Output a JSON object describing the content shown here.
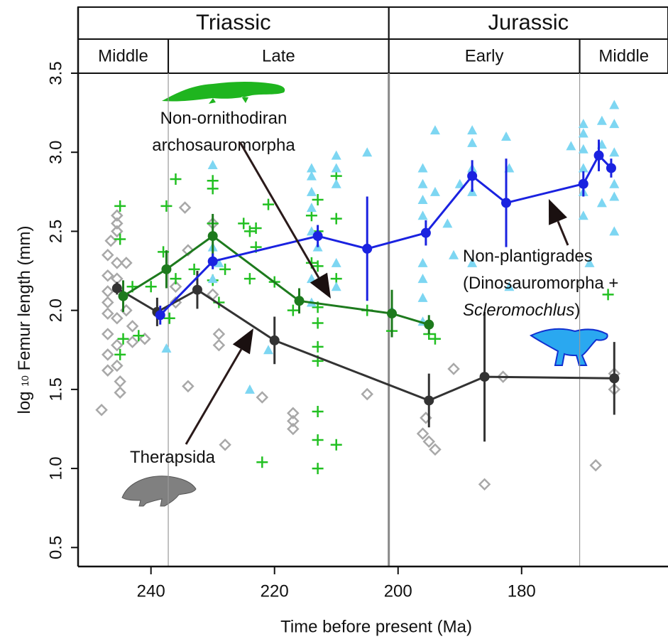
{
  "chart_data": {
    "type": "line",
    "xlabel": "Time before present (Ma)",
    "ylabel": {
      "prefix": "log",
      "subscript": "10",
      "text": "Femur length (mm)"
    },
    "xlim": [
      251.8,
      156.3
    ],
    "xticks": [
      240,
      220,
      200,
      180
    ],
    "ylim": [
      0.38,
      3.5
    ],
    "yticks": [
      0.5,
      {
        "value": 1,
        "label": "1.0"
      },
      1.5,
      {
        "value": 2,
        "label": "2.0"
      },
      2.5,
      {
        "value": 3,
        "label": "3.0"
      },
      3.5
    ],
    "periods": [
      {
        "label": "Triassic",
        "from": 251.8,
        "to": 201.5
      },
      {
        "label": "Jurassic",
        "from": 201.5,
        "to": 156.3
      }
    ],
    "epochs": [
      {
        "label": "Middle",
        "from": 251.8,
        "to": 237.2
      },
      {
        "label": "Late",
        "from": 237.2,
        "to": 201.5
      },
      {
        "label": "Early",
        "from": 201.5,
        "to": 170.6
      },
      {
        "label": "Middle",
        "from": 170.6,
        "to": 156.3
      }
    ],
    "series": [
      {
        "label_lines": [
          [
            {
              "text": "Therapsida"
            }
          ]
        ],
        "color": "#333333",
        "point_color": "#a8a8a8",
        "marker": "diamond",
        "x": [
          245.5,
          239,
          232.5,
          220,
          195,
          186,
          165
        ],
        "values": [
          2.14,
          1.99,
          2.13,
          1.81,
          1.43,
          1.58,
          1.57
        ],
        "errors": [
          0.04,
          0.09,
          0.12,
          0.15,
          0.17,
          0.41,
          0.23
        ],
        "points": {
          "x": [
            248,
            247,
            247,
            247,
            247,
            247,
            247,
            247,
            247,
            246.5,
            245.5,
            245.5,
            245.5,
            245.5,
            245.5,
            245.5,
            245.5,
            245.5,
            245,
            245,
            244,
            244,
            243,
            243,
            241,
            236,
            236,
            234,
            234.5,
            234,
            230,
            230,
            229,
            229,
            228,
            222,
            217,
            217,
            217,
            205,
            195.5,
            196,
            195,
            194,
            191,
            186,
            183,
            168,
            165,
            165
          ],
          "values": [
            1.37,
            1.62,
            1.72,
            1.85,
            1.98,
            2.05,
            2.12,
            2.22,
            2.35,
            2.44,
            2.5,
            2.55,
            2.6,
            2.3,
            2.2,
            1.95,
            1.78,
            1.65,
            1.55,
            1.48,
            2.3,
            2.0,
            1.9,
            1.8,
            1.82,
            2.05,
            2.15,
            2.38,
            2.65,
            1.52,
            2.55,
            2.1,
            1.85,
            1.78,
            1.15,
            1.45,
            1.35,
            1.3,
            1.25,
            1.47,
            1.32,
            1.22,
            1.17,
            1.12,
            1.63,
            0.9,
            1.58,
            1.02,
            1.6,
            1.5
          ]
        }
      },
      {
        "label_lines": [
          [
            {
              "text": "Non-ornithodiran"
            }
          ],
          [
            {
              "text": "archosauromorpha"
            }
          ]
        ],
        "color": "#1d7a1d",
        "point_color": "#22c022",
        "marker": "plus",
        "x": [
          244.5,
          237.5,
          230,
          216,
          201,
          195
        ],
        "values": [
          2.09,
          2.26,
          2.47,
          2.06,
          1.98,
          1.91
        ],
        "errors": [
          0.1,
          0.12,
          0.14,
          0.08,
          0.15,
          0.06
        ],
        "points": {
          "x": [
            245,
            245,
            245,
            244.5,
            243,
            242,
            240,
            237.5,
            238,
            237,
            236,
            233,
            230,
            230,
            230,
            230,
            229,
            228,
            225,
            224,
            224,
            223,
            223,
            222,
            221,
            220,
            217,
            214,
            214,
            213,
            213,
            213,
            213,
            213,
            213,
            213,
            213,
            213,
            213,
            210,
            210,
            210,
            210,
            205,
            201,
            195,
            194,
            166,
            236
          ],
          "values": [
            2.66,
            2.45,
            1.72,
            1.82,
            2.15,
            1.84,
            2.15,
            2.66,
            2.37,
            1.95,
            2.2,
            2.26,
            2.82,
            2.77,
            2.55,
            2.19,
            2.05,
            2.26,
            2.55,
            2.5,
            2.2,
            2.52,
            2.4,
            1.04,
            2.67,
            2.18,
            2.0,
            2.6,
            2.3,
            2.7,
            2.5,
            2.28,
            2.02,
            1.92,
            1.77,
            1.68,
            1.36,
            1.18,
            1.0,
            2.85,
            2.58,
            2.2,
            1.15,
            2.0,
            1.87,
            1.85,
            1.82,
            2.1,
            2.83
          ]
        }
      },
      {
        "label_lines": [
          [
            {
              "text": "Non-plantigrades"
            }
          ],
          [
            {
              "text": "(Dinosauromorpha +"
            }
          ],
          [
            {
              "text": "Scleromochlus",
              "italic": true
            },
            {
              "text": ")"
            }
          ]
        ],
        "color": "#1a22e0",
        "point_color": "#7dd6f2",
        "marker": "triangle",
        "x": [
          238.5,
          230,
          213,
          205,
          195.5,
          188,
          182.5,
          170,
          167.5,
          165.5
        ],
        "values": [
          1.97,
          2.31,
          2.47,
          2.39,
          2.49,
          2.85,
          2.68,
          2.8,
          2.98,
          2.9
        ],
        "errors": [
          0.06,
          0.05,
          0.07,
          0.33,
          0.08,
          0.1,
          0.28,
          0.08,
          0.1,
          0.06
        ],
        "points": {
          "x": [
            237.5,
            230,
            230,
            229,
            230,
            221,
            224,
            214,
            214,
            214,
            214,
            214,
            214,
            214,
            213,
            210,
            210,
            210,
            210,
            210,
            205,
            201,
            196,
            196,
            196,
            196,
            196,
            196,
            196,
            196,
            194,
            194,
            192,
            191,
            190,
            188,
            188,
            188,
            188,
            188,
            182.5,
            182,
            182,
            170,
            170,
            170,
            170,
            170,
            170,
            169,
            167,
            167,
            167,
            165,
            165,
            165,
            165,
            165,
            165,
            172
          ],
          "values": [
            1.76,
            2.92,
            2.4,
            2.3,
            2.2,
            1.75,
            1.5,
            2.9,
            2.85,
            2.75,
            2.65,
            2.5,
            2.2,
            2.05,
            2.4,
            2.98,
            2.9,
            2.8,
            2.3,
            2.15,
            3.0,
            2.0,
            2.9,
            2.8,
            2.7,
            2.6,
            2.3,
            2.2,
            2.08,
            1.93,
            3.14,
            2.75,
            2.55,
            2.35,
            2.8,
            3.14,
            3.06,
            2.9,
            2.75,
            2.3,
            3.1,
            2.9,
            2.15,
            3.18,
            3.12,
            3.02,
            2.9,
            2.75,
            2.6,
            2.3,
            3.2,
            3.05,
            2.68,
            3.3,
            3.18,
            3.0,
            2.8,
            2.72,
            2.5,
            3.04
          ]
        }
      }
    ]
  }
}
